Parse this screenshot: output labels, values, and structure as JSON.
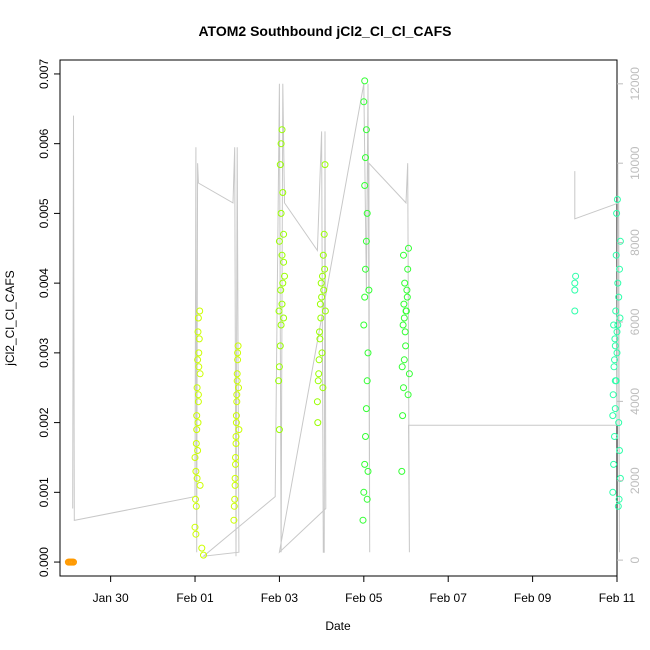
{
  "chart_data": {
    "type": "scatter",
    "title": "ATOM2 Southbound jCl2_Cl_Cl_CAFS",
    "xlabel": "Date",
    "ylabel": "jCl2_Cl_Cl_CAFS",
    "x_start": "Jan 28 12:00",
    "xlim_days": [
      28.8,
      42.0
    ],
    "ylim": [
      -0.0002,
      0.0072
    ],
    "y2lim": [
      -400,
      12600
    ],
    "x_ticks": [
      {
        "day": 30,
        "label": "Jan 30"
      },
      {
        "day": 32,
        "label": "Feb 01"
      },
      {
        "day": 34,
        "label": "Feb 03"
      },
      {
        "day": 36,
        "label": "Feb 05"
      },
      {
        "day": 38,
        "label": "Feb 07"
      },
      {
        "day": 40,
        "label": "Feb 09"
      },
      {
        "day": 42,
        "label": "Feb 11"
      }
    ],
    "y_ticks": [
      {
        "value": 0.0,
        "label": "0.000"
      },
      {
        "value": 0.001,
        "label": "0.001"
      },
      {
        "value": 0.002,
        "label": "0.002"
      },
      {
        "value": 0.003,
        "label": "0.003"
      },
      {
        "value": 0.004,
        "label": "0.004"
      },
      {
        "value": 0.005,
        "label": "0.005"
      },
      {
        "value": 0.006,
        "label": "0.006"
      },
      {
        "value": 0.007,
        "label": "0.007"
      }
    ],
    "y2_ticks": [
      {
        "value": 0,
        "label": "0"
      },
      {
        "value": 2000,
        "label": "2000"
      },
      {
        "value": 4000,
        "label": "4000"
      },
      {
        "value": 6000,
        "label": "6000"
      },
      {
        "value": 8000,
        "label": "8000"
      },
      {
        "value": 10000,
        "label": "10000"
      },
      {
        "value": 12000,
        "label": "12000"
      }
    ],
    "altitude_series_color": "#c8c8c8",
    "altitude_track": [
      [
        29.1,
        1300
      ],
      [
        29.12,
        11200
      ],
      [
        29.14,
        1000
      ],
      [
        32.0,
        1600
      ],
      [
        32.02,
        10400
      ],
      [
        32.04,
        200
      ],
      [
        32.06,
        10000
      ],
      [
        32.08,
        9500
      ],
      [
        32.9,
        9000
      ],
      [
        32.94,
        10400
      ],
      [
        32.97,
        100
      ],
      [
        33.0,
        10400
      ],
      [
        33.04,
        200
      ],
      [
        32.2,
        100
      ],
      [
        33.9,
        1600
      ],
      [
        34.0,
        12000
      ],
      [
        34.04,
        200
      ],
      [
        34.08,
        12000
      ],
      [
        34.12,
        9000
      ],
      [
        34.9,
        7800
      ],
      [
        35.0,
        10800
      ],
      [
        35.04,
        200
      ],
      [
        35.06,
        200
      ],
      [
        35.08,
        10800
      ],
      [
        35.1,
        1300
      ],
      [
        34.0,
        200
      ],
      [
        36.0,
        12000
      ],
      [
        36.06,
        6800
      ],
      [
        36.1,
        12000
      ],
      [
        36.14,
        200
      ],
      [
        36.12,
        10000
      ],
      [
        37.0,
        9000
      ],
      [
        37.04,
        10000
      ],
      [
        37.08,
        200
      ],
      [
        37.06,
        3400
      ],
      [
        42.0,
        3400
      ],
      [
        42.02,
        10000
      ],
      [
        42.06,
        200
      ],
      [
        42.04,
        9000
      ],
      [
        41.0,
        8600
      ],
      [
        41.0,
        9800
      ]
    ],
    "series": [
      {
        "color": "#ff9a00",
        "points": [
          [
            29.0,
            0.0
          ],
          [
            29.02,
            0.0
          ],
          [
            29.04,
            0.0
          ],
          [
            29.06,
            0.0
          ],
          [
            29.08,
            0.0
          ],
          [
            29.1,
            0.0
          ],
          [
            29.12,
            0.0
          ]
        ]
      },
      {
        "color": "#ccff00",
        "points": [
          [
            32.0,
            0.0005
          ],
          [
            32.01,
            0.0009
          ],
          [
            32.02,
            0.0013
          ],
          [
            32.03,
            0.0017
          ],
          [
            32.04,
            0.0021
          ],
          [
            32.05,
            0.0025
          ],
          [
            32.06,
            0.0029
          ],
          [
            32.07,
            0.0033
          ],
          [
            32.08,
            0.0035
          ],
          [
            32.09,
            0.003
          ],
          [
            32.02,
            0.0004
          ],
          [
            32.03,
            0.0008
          ],
          [
            32.05,
            0.0012
          ],
          [
            32.06,
            0.0016
          ],
          [
            32.07,
            0.002
          ],
          [
            32.08,
            0.0024
          ],
          [
            32.09,
            0.0028
          ],
          [
            32.1,
            0.0032
          ],
          [
            32.11,
            0.0036
          ],
          [
            32.12,
            0.0027
          ],
          [
            32.0,
            0.0015
          ],
          [
            32.04,
            0.0019
          ],
          [
            32.08,
            0.0023
          ],
          [
            32.12,
            0.0011
          ],
          [
            32.2,
            0.0001
          ],
          [
            32.16,
            0.0002
          ],
          [
            32.92,
            0.0006
          ],
          [
            32.94,
            0.0009
          ],
          [
            32.95,
            0.0012
          ],
          [
            32.96,
            0.0015
          ],
          [
            32.97,
            0.0018
          ],
          [
            32.98,
            0.0021
          ],
          [
            32.99,
            0.0024
          ],
          [
            33.0,
            0.0027
          ],
          [
            33.01,
            0.003
          ],
          [
            33.02,
            0.0031
          ],
          [
            32.93,
            0.0008
          ],
          [
            32.95,
            0.0011
          ],
          [
            32.96,
            0.0014
          ],
          [
            32.97,
            0.0017
          ],
          [
            32.98,
            0.002
          ],
          [
            32.99,
            0.0023
          ],
          [
            33.0,
            0.0026
          ],
          [
            33.01,
            0.0029
          ],
          [
            33.03,
            0.0025
          ],
          [
            33.04,
            0.0019
          ]
        ]
      },
      {
        "color": "#99ff00",
        "points": [
          [
            33.98,
            0.0026
          ],
          [
            34.0,
            0.0028
          ],
          [
            34.02,
            0.0031
          ],
          [
            34.04,
            0.0034
          ],
          [
            34.06,
            0.0037
          ],
          [
            34.08,
            0.004
          ],
          [
            34.1,
            0.0043
          ],
          [
            34.0,
            0.0046
          ],
          [
            34.04,
            0.005
          ],
          [
            34.08,
            0.0053
          ],
          [
            34.02,
            0.0057
          ],
          [
            34.04,
            0.006
          ],
          [
            34.06,
            0.0062
          ],
          [
            34.0,
            0.0019
          ],
          [
            34.1,
            0.0035
          ],
          [
            34.12,
            0.0041
          ],
          [
            34.06,
            0.0044
          ],
          [
            34.1,
            0.0047
          ],
          [
            33.99,
            0.0036
          ],
          [
            34.03,
            0.0039
          ],
          [
            34.9,
            0.0023
          ],
          [
            34.92,
            0.0026
          ],
          [
            34.94,
            0.0029
          ],
          [
            34.96,
            0.0032
          ],
          [
            34.98,
            0.0035
          ],
          [
            35.0,
            0.0038
          ],
          [
            35.02,
            0.0041
          ],
          [
            35.04,
            0.0044
          ],
          [
            35.06,
            0.0047
          ],
          [
            35.08,
            0.0057
          ],
          [
            34.91,
            0.002
          ],
          [
            34.93,
            0.0027
          ],
          [
            34.95,
            0.0033
          ],
          [
            34.97,
            0.0037
          ],
          [
            34.99,
            0.004
          ],
          [
            35.01,
            0.003
          ],
          [
            35.03,
            0.0025
          ],
          [
            35.05,
            0.0039
          ],
          [
            35.07,
            0.0042
          ],
          [
            35.09,
            0.0036
          ]
        ]
      },
      {
        "color": "#33ff33",
        "points": [
          [
            35.98,
            0.0006
          ],
          [
            36.0,
            0.001
          ],
          [
            36.02,
            0.0014
          ],
          [
            36.04,
            0.0018
          ],
          [
            36.06,
            0.0022
          ],
          [
            36.08,
            0.0026
          ],
          [
            36.1,
            0.003
          ],
          [
            36.0,
            0.0034
          ],
          [
            36.02,
            0.0038
          ],
          [
            36.04,
            0.0042
          ],
          [
            36.06,
            0.0046
          ],
          [
            36.08,
            0.005
          ],
          [
            36.02,
            0.0054
          ],
          [
            36.04,
            0.0058
          ],
          [
            36.06,
            0.0062
          ],
          [
            36.0,
            0.0066
          ],
          [
            36.02,
            0.0069
          ],
          [
            36.08,
            0.0009
          ],
          [
            36.1,
            0.0013
          ],
          [
            36.12,
            0.0039
          ],
          [
            36.9,
            0.0013
          ],
          [
            36.92,
            0.0021
          ],
          [
            36.94,
            0.0025
          ],
          [
            36.96,
            0.0029
          ],
          [
            36.98,
            0.0033
          ],
          [
            37.0,
            0.0036
          ],
          [
            37.02,
            0.0039
          ],
          [
            37.04,
            0.0042
          ],
          [
            37.06,
            0.0045
          ],
          [
            37.08,
            0.0027
          ],
          [
            36.93,
            0.0034
          ],
          [
            36.95,
            0.0037
          ],
          [
            36.97,
            0.004
          ],
          [
            36.99,
            0.0031
          ],
          [
            37.01,
            0.0036
          ],
          [
            37.03,
            0.0038
          ],
          [
            37.05,
            0.0024
          ],
          [
            36.91,
            0.0028
          ],
          [
            36.94,
            0.0044
          ],
          [
            36.96,
            0.0035
          ]
        ]
      },
      {
        "color": "#2dffaa",
        "points": [
          [
            41.0,
            0.0036
          ],
          [
            41.0,
            0.0039
          ],
          [
            41.02,
            0.0041
          ],
          [
            41.0,
            0.004
          ],
          [
            41.9,
            0.001
          ],
          [
            41.92,
            0.0014
          ],
          [
            41.94,
            0.0018
          ],
          [
            41.96,
            0.0022
          ],
          [
            41.98,
            0.0026
          ],
          [
            42.0,
            0.003
          ],
          [
            42.02,
            0.0034
          ],
          [
            42.04,
            0.0038
          ],
          [
            42.06,
            0.0042
          ],
          [
            42.08,
            0.0046
          ],
          [
            41.91,
            0.0024
          ],
          [
            41.93,
            0.0028
          ],
          [
            41.95,
            0.0032
          ],
          [
            41.97,
            0.0036
          ],
          [
            41.99,
            0.005
          ],
          [
            42.01,
            0.0052
          ],
          [
            42.03,
            0.0008
          ],
          [
            42.05,
            0.0009
          ],
          [
            42.07,
            0.0035
          ],
          [
            42.0,
            0.0033
          ],
          [
            41.94,
            0.0029
          ],
          [
            41.96,
            0.0031
          ],
          [
            41.98,
            0.0044
          ],
          [
            42.02,
            0.004
          ],
          [
            42.04,
            0.002
          ],
          [
            42.06,
            0.0016
          ],
          [
            42.08,
            0.0012
          ],
          [
            41.92,
            0.0034
          ],
          [
            41.9,
            0.0021
          ],
          [
            41.96,
            0.0026
          ]
        ]
      }
    ]
  }
}
